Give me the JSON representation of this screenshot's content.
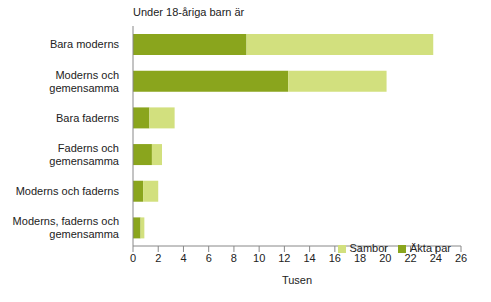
{
  "chart_data": {
    "type": "bar",
    "title": "Under 18-åriga barn är",
    "orientation": "horizontal",
    "stacked": true,
    "categories": [
      "Bara moderns",
      "Moderns och gemensamma",
      "Bara faderns",
      "Faderns och gemensamma",
      "Moderns och faderns",
      "Moderns, faderns och gemensamma"
    ],
    "series": [
      {
        "name": "Äkta par",
        "color": "#8aa51d",
        "values": [
          9.0,
          12.3,
          1.3,
          1.5,
          0.8,
          0.6
        ]
      },
      {
        "name": "Sambor",
        "color": "#d2e07e",
        "values": [
          14.8,
          7.8,
          2.0,
          0.8,
          1.2,
          0.3
        ]
      }
    ],
    "xlabel": "Tusen",
    "xlim": [
      0,
      26
    ],
    "xticks": [
      0,
      2,
      4,
      6,
      8,
      10,
      12,
      14,
      16,
      18,
      20,
      22,
      24,
      26
    ],
    "grid": false,
    "legend": "lower right"
  }
}
